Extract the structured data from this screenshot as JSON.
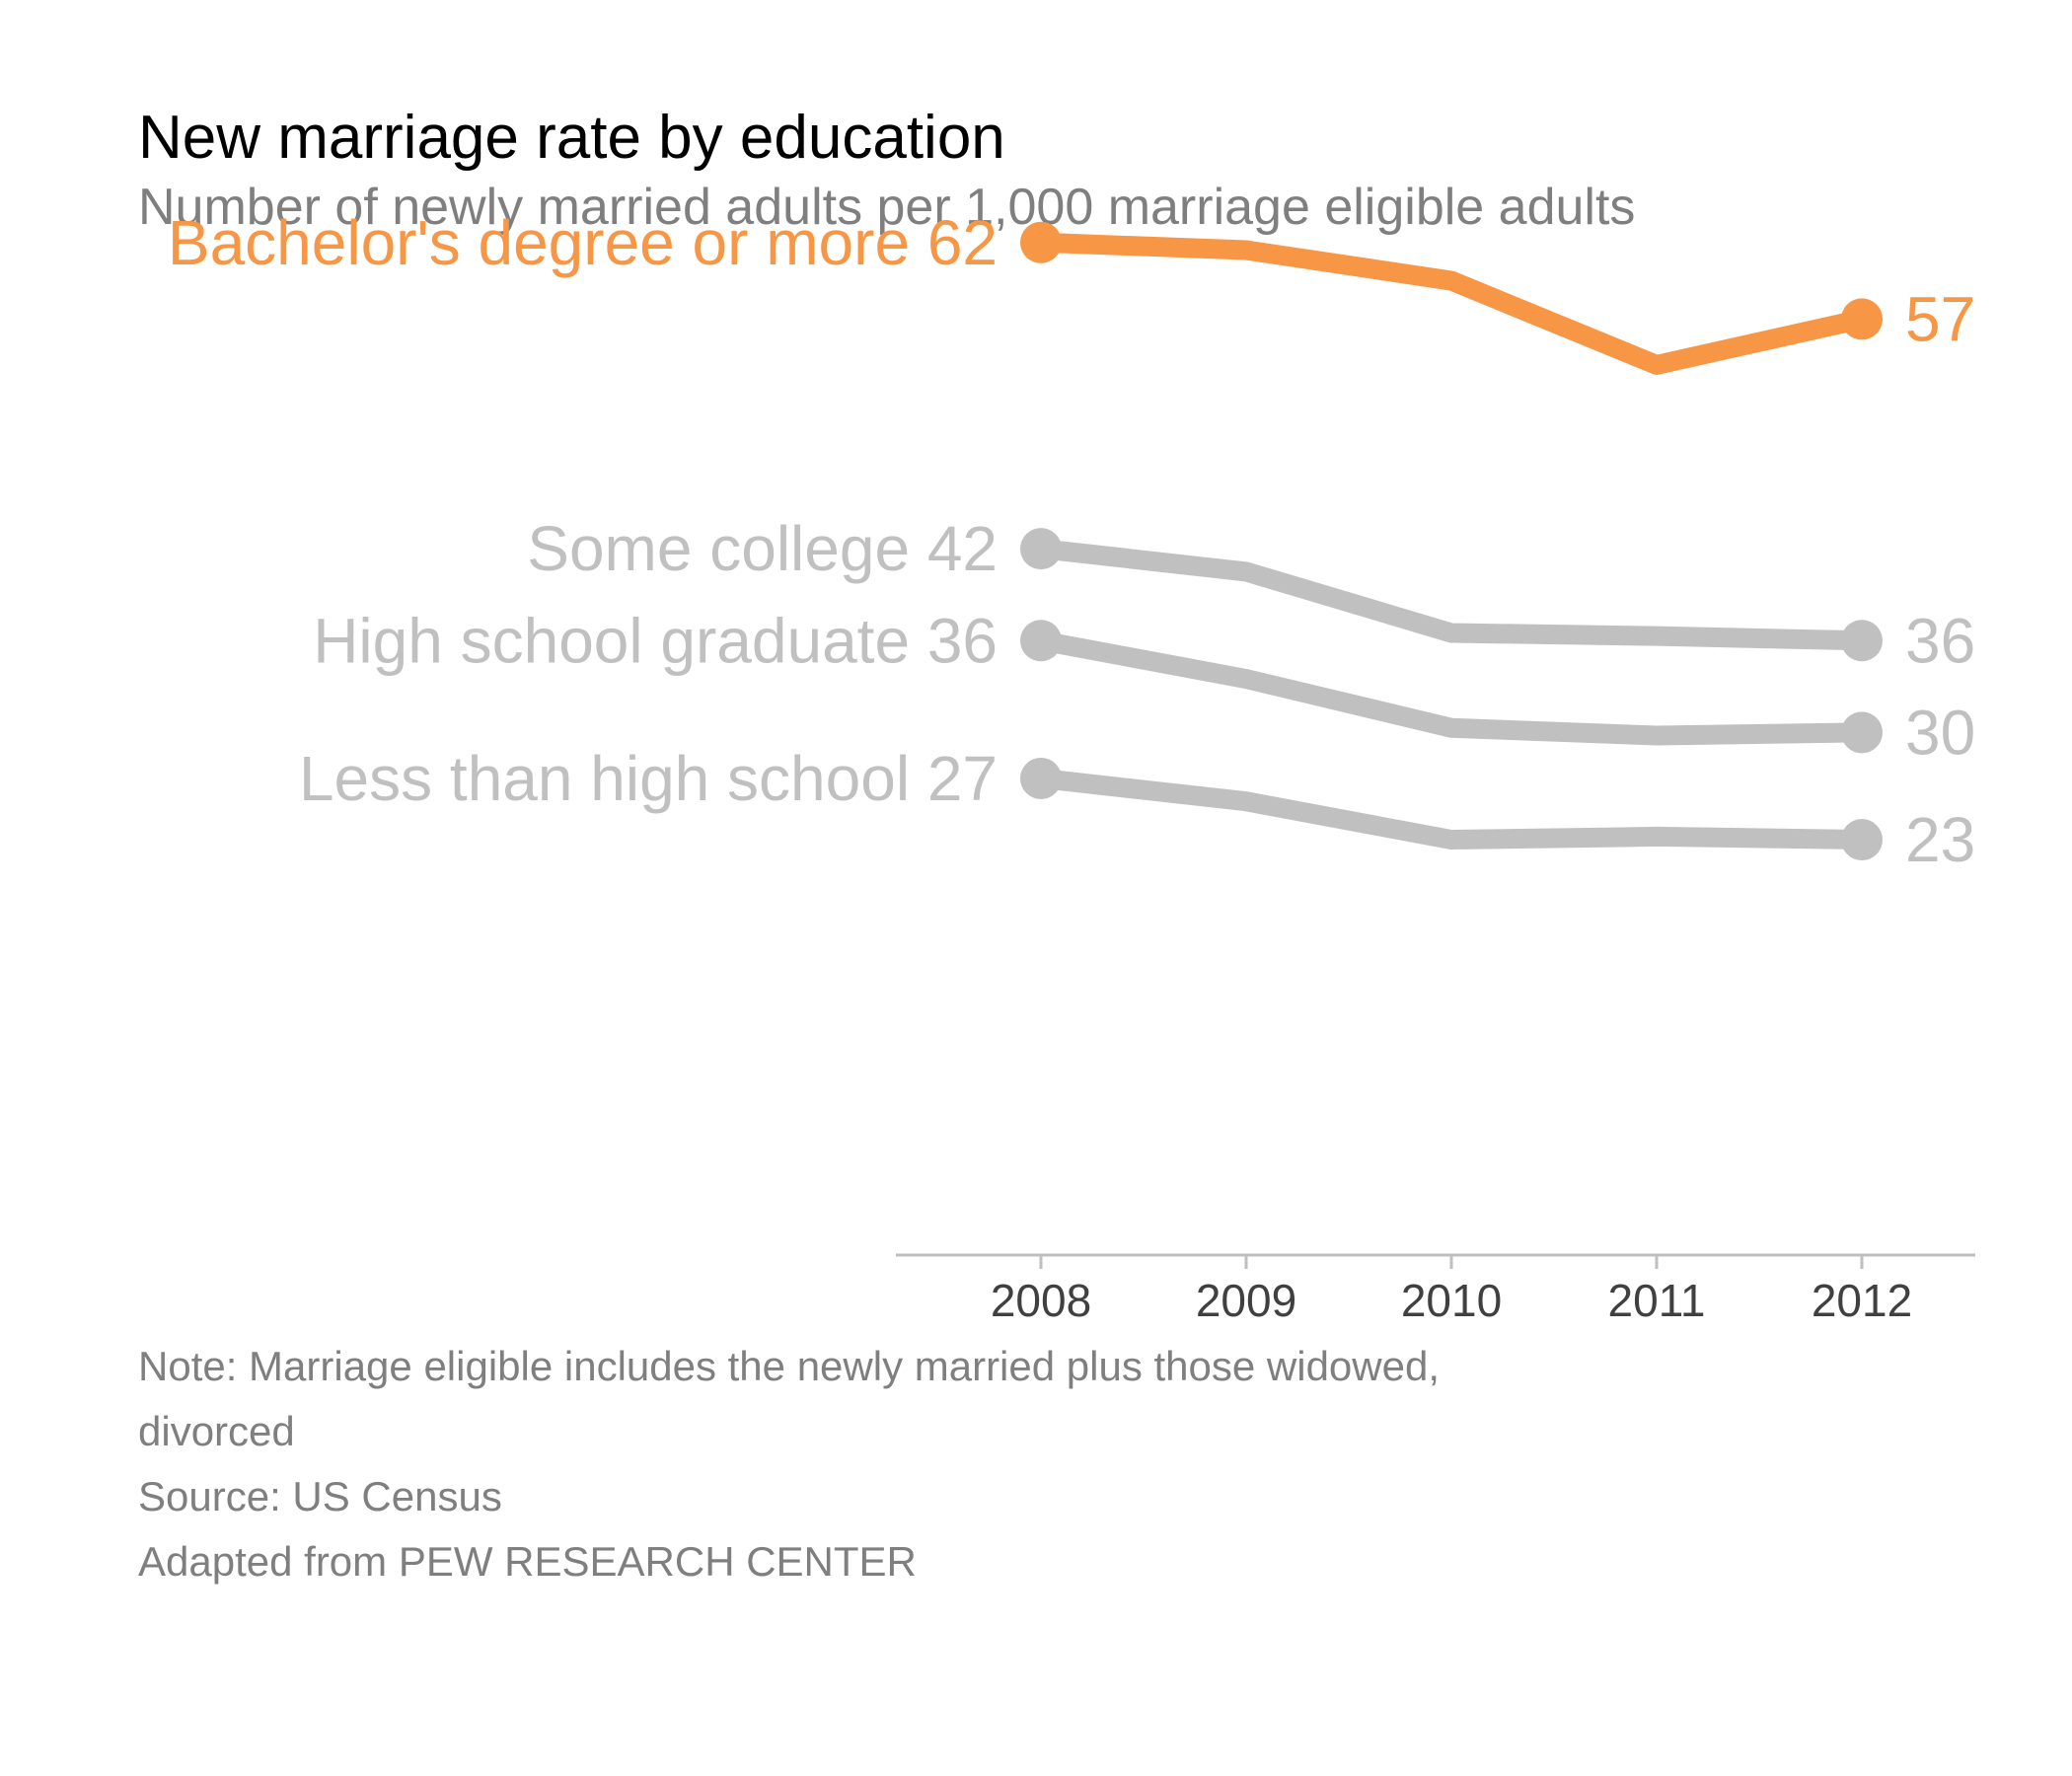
{
  "colors": {
    "highlight": "#f79645",
    "muted": "#c0c0c0",
    "axis": "#bfbfbf",
    "tick_text": "#404040"
  },
  "chart_data": {
    "type": "line",
    "title": "New marriage rate by education",
    "subtitle": "Number of newly married adults per 1,000 marriage eligible adults",
    "x": [
      "2008",
      "2009",
      "2010",
      "2011",
      "2012"
    ],
    "xlabel": "",
    "ylabel": "",
    "ylim": [
      0,
      70
    ],
    "grid": false,
    "series": [
      {
        "name": "Bachelor's degree or more",
        "values": [
          62,
          61.5,
          59.5,
          54,
          57
        ],
        "start_label": "62",
        "end_label": "57",
        "highlight": true
      },
      {
        "name": "Some college",
        "values": [
          42,
          40.5,
          36.5,
          36.3,
          36
        ],
        "start_label": "42",
        "end_label": "36",
        "highlight": false
      },
      {
        "name": "High school graduate",
        "values": [
          36,
          33.5,
          30.3,
          29.8,
          30
        ],
        "start_label": "36",
        "end_label": "30",
        "highlight": false
      },
      {
        "name": "Less than high school",
        "values": [
          27,
          25.5,
          23,
          23.2,
          23
        ],
        "start_label": "27",
        "end_label": "23",
        "highlight": false
      }
    ]
  },
  "notes": {
    "note_line1": "Note: Marriage eligible includes the newly married plus those widowed,",
    "note_line2": "divorced",
    "source": "Source: US Census",
    "adapted": "Adapted from PEW RESEARCH CENTER"
  }
}
